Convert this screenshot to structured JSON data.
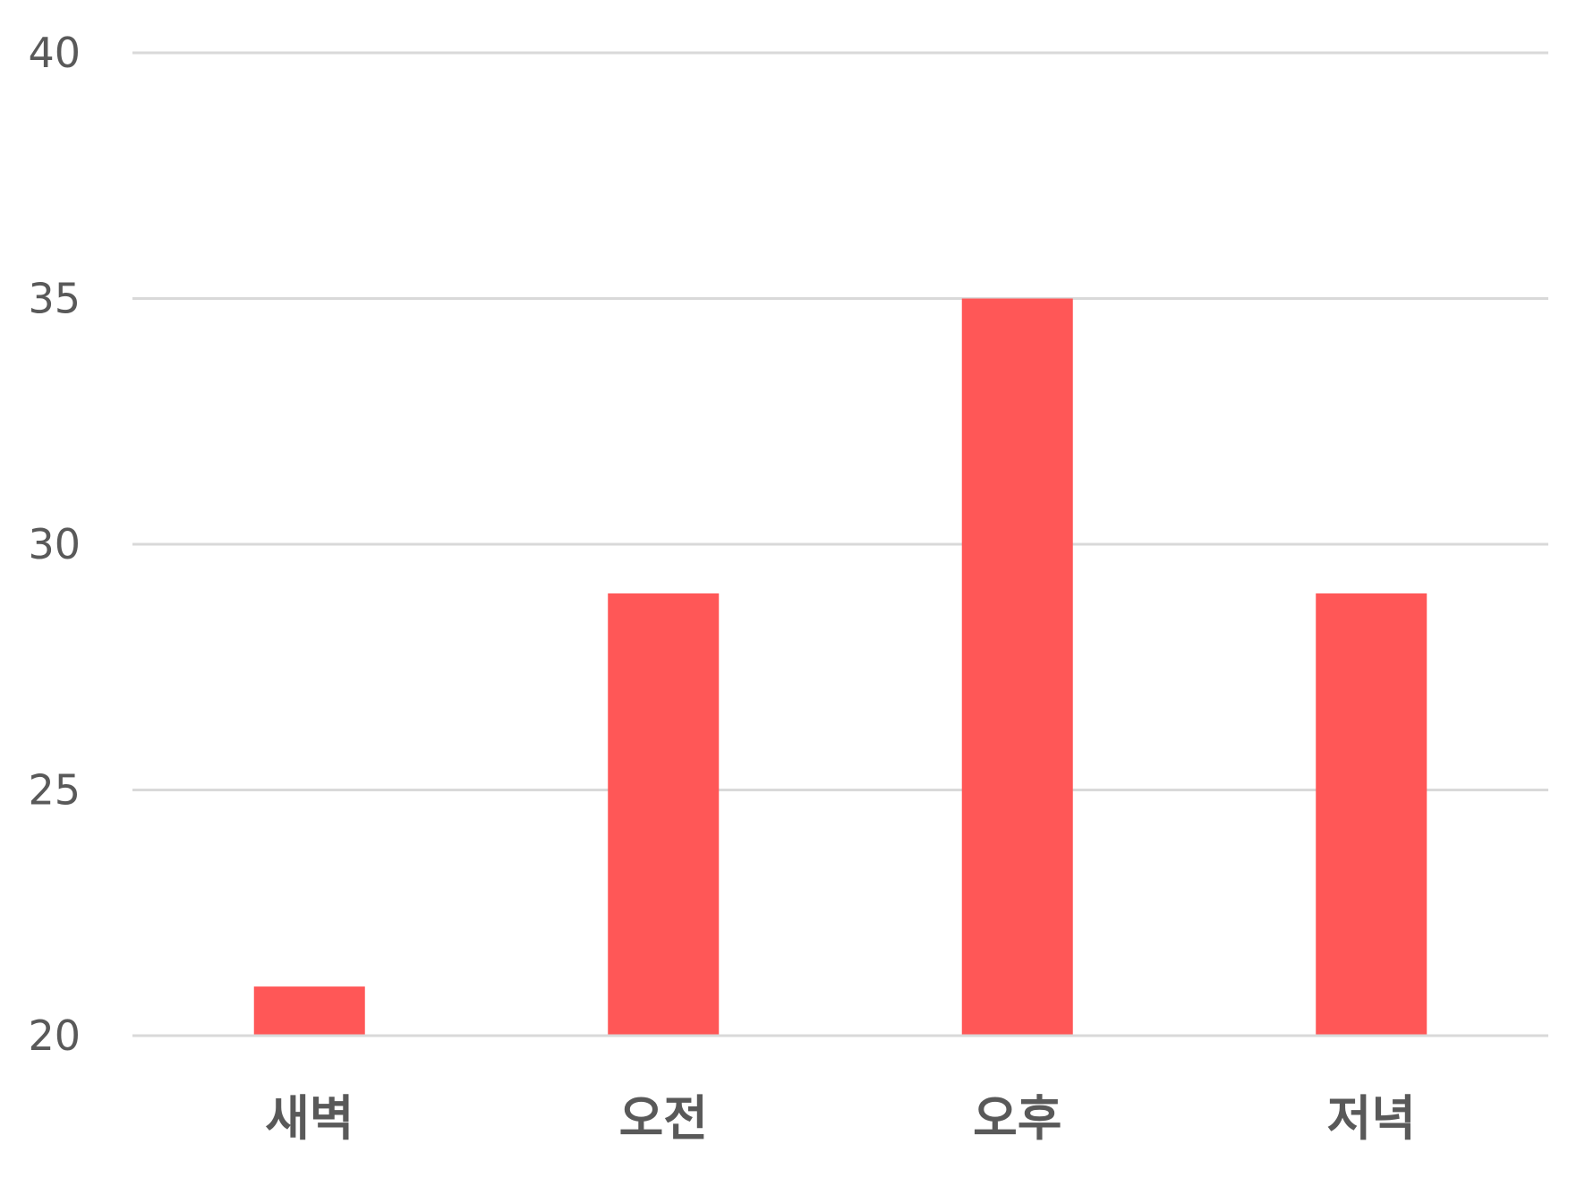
{
  "chart_data": {
    "type": "bar",
    "title": "",
    "xlabel": "",
    "ylabel": "",
    "categories": [
      "새벽",
      "오전",
      "오후",
      "저녁"
    ],
    "values": [
      21,
      29,
      35,
      29
    ],
    "ylim": [
      20,
      40
    ],
    "yticks": [
      "20",
      "25",
      "30",
      "35",
      "40"
    ],
    "grid": true,
    "legend": "none",
    "colors": {
      "bar": "#ff5757",
      "grid": "#d9d9d9",
      "text": "#595959"
    }
  }
}
